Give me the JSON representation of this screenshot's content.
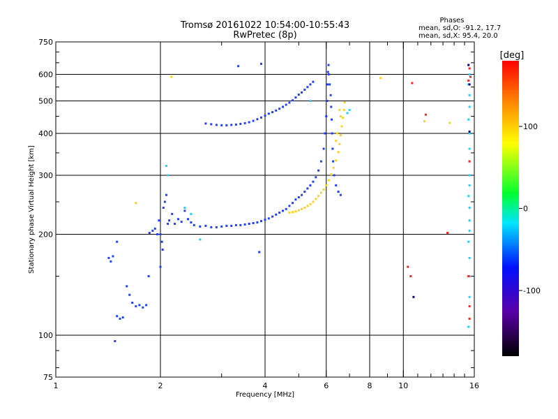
{
  "chart_data": {
    "type": "scatter",
    "title": "Tromsø 20161022 10:54:00-10:55:43",
    "subtitle": "RwPretec (8p)",
    "phases": {
      "heading": "Phases",
      "line_o": "mean, sd,O: -91.2, 17.7",
      "line_x": "mean, sd,X: 95.4, 20.0"
    },
    "xlabel": "Frequency [MHz]",
    "ylabel": "Stationary phase Virtual Height [km]",
    "x_scale": "log",
    "y_scale": "log",
    "xlim": [
      1,
      16
    ],
    "ylim": [
      75,
      750
    ],
    "x_ticks": [
      1,
      2,
      4,
      6,
      8,
      10,
      16
    ],
    "x_tick_labels": [
      "1",
      "2",
      "4",
      "6",
      "8",
      "10",
      "16"
    ],
    "x_minor_ticks": [
      3,
      5,
      7,
      9,
      11,
      12,
      13,
      14,
      15
    ],
    "x_grid": [
      2,
      4,
      6,
      8,
      10
    ],
    "y_ticks": [
      75,
      100,
      200,
      300,
      400,
      500,
      600,
      750
    ],
    "y_tick_labels": [
      "75",
      "100",
      "200",
      "300",
      "400",
      "500",
      "600",
      "750"
    ],
    "y_minor_ticks": [
      80,
      90,
      150,
      250,
      350,
      450,
      550,
      650,
      700
    ],
    "y_grid": [
      100,
      200,
      300,
      400,
      500,
      600
    ],
    "colorbar": {
      "unit": "[deg]",
      "range": [
        -180,
        180
      ],
      "ticks": [
        100,
        0,
        -100
      ],
      "tick_labels": [
        "100",
        "0",
        "-100"
      ]
    },
    "series": [
      {
        "mode": "O",
        "phase_deg": -100,
        "color": "#2040ff",
        "points": [
          [
            1.42,
            170
          ],
          [
            1.44,
            166
          ],
          [
            1.46,
            172
          ],
          [
            1.5,
            114
          ],
          [
            1.53,
            112
          ],
          [
            1.56,
            113
          ],
          [
            1.6,
            140
          ],
          [
            1.63,
            132
          ],
          [
            1.66,
            125
          ],
          [
            1.7,
            122
          ],
          [
            1.74,
            123
          ],
          [
            1.78,
            121
          ],
          [
            1.82,
            123
          ],
          [
            1.85,
            150
          ],
          [
            1.86,
            202
          ],
          [
            1.9,
            205
          ],
          [
            1.93,
            208
          ],
          [
            1.96,
            200
          ],
          [
            1.98,
            220
          ],
          [
            2.0,
            160
          ],
          [
            2.0,
            200
          ],
          [
            2.02,
            190
          ],
          [
            2.03,
            180
          ],
          [
            2.04,
            240
          ],
          [
            2.06,
            250
          ],
          [
            2.08,
            262
          ],
          [
            2.1,
            215
          ],
          [
            2.12,
            220
          ],
          [
            2.16,
            230
          ],
          [
            2.2,
            215
          ],
          [
            2.25,
            222
          ],
          [
            2.3,
            218
          ],
          [
            2.35,
            235
          ],
          [
            2.4,
            222
          ],
          [
            2.45,
            217
          ],
          [
            2.5,
            213
          ],
          [
            2.6,
            211
          ],
          [
            2.7,
            212
          ],
          [
            2.8,
            210
          ],
          [
            2.9,
            210
          ],
          [
            3.0,
            211
          ],
          [
            3.1,
            212
          ],
          [
            3.2,
            212
          ],
          [
            3.3,
            213
          ],
          [
            3.4,
            213
          ],
          [
            3.5,
            214
          ],
          [
            3.6,
            215
          ],
          [
            3.7,
            216
          ],
          [
            3.8,
            217
          ],
          [
            3.9,
            219
          ],
          [
            4.0,
            221
          ],
          [
            4.1,
            223
          ],
          [
            4.2,
            226
          ],
          [
            4.3,
            229
          ],
          [
            4.4,
            232
          ],
          [
            4.5,
            235
          ],
          [
            4.6,
            238
          ],
          [
            4.7,
            243
          ],
          [
            4.8,
            248
          ],
          [
            4.9,
            254
          ],
          [
            5.0,
            258
          ],
          [
            5.1,
            262
          ],
          [
            5.2,
            268
          ],
          [
            5.3,
            274
          ],
          [
            5.4,
            280
          ],
          [
            5.5,
            287
          ],
          [
            5.6,
            296
          ],
          [
            5.7,
            310
          ],
          [
            5.8,
            330
          ],
          [
            5.9,
            360
          ],
          [
            5.95,
            400
          ],
          [
            6.0,
            450
          ],
          [
            6.03,
            500
          ],
          [
            6.05,
            560
          ],
          [
            6.07,
            610
          ],
          [
            6.09,
            640
          ],
          [
            2.7,
            428
          ],
          [
            2.8,
            426
          ],
          [
            2.9,
            424
          ],
          [
            3.0,
            423
          ],
          [
            3.1,
            423
          ],
          [
            3.2,
            424
          ],
          [
            3.3,
            425
          ],
          [
            3.4,
            427
          ],
          [
            3.5,
            429
          ],
          [
            3.6,
            432
          ],
          [
            3.7,
            436
          ],
          [
            3.8,
            441
          ],
          [
            3.9,
            446
          ],
          [
            4.0,
            452
          ],
          [
            4.1,
            458
          ],
          [
            4.2,
            463
          ],
          [
            4.3,
            468
          ],
          [
            4.4,
            474
          ],
          [
            4.5,
            480
          ],
          [
            4.6,
            487
          ],
          [
            4.7,
            494
          ],
          [
            4.8,
            502
          ],
          [
            4.9,
            512
          ],
          [
            5.0,
            522
          ],
          [
            5.1,
            530
          ],
          [
            5.2,
            540
          ],
          [
            5.3,
            550
          ],
          [
            5.4,
            560
          ],
          [
            5.5,
            570
          ],
          [
            6.1,
            600
          ],
          [
            6.14,
            560
          ],
          [
            6.18,
            520
          ],
          [
            6.2,
            480
          ],
          [
            6.22,
            440
          ],
          [
            6.24,
            400
          ],
          [
            6.26,
            360
          ],
          [
            6.28,
            330
          ],
          [
            6.32,
            300
          ],
          [
            6.4,
            280
          ],
          [
            6.5,
            268
          ],
          [
            6.6,
            262
          ],
          [
            3.35,
            635
          ],
          [
            3.9,
            645
          ],
          [
            3.85,
            177
          ],
          [
            1.5,
            190
          ],
          [
            1.48,
            96
          ]
        ]
      },
      {
        "mode": "X",
        "phase_deg": 100,
        "color": "#ffd21a",
        "points": [
          [
            4.7,
            232
          ],
          [
            4.8,
            233
          ],
          [
            4.9,
            234
          ],
          [
            5.0,
            236
          ],
          [
            5.1,
            238
          ],
          [
            5.2,
            240
          ],
          [
            5.3,
            243
          ],
          [
            5.4,
            246
          ],
          [
            5.5,
            250
          ],
          [
            5.6,
            255
          ],
          [
            5.7,
            260
          ],
          [
            5.8,
            266
          ],
          [
            5.9,
            272
          ],
          [
            6.0,
            280
          ],
          [
            6.1,
            290
          ],
          [
            6.2,
            302
          ],
          [
            6.3,
            316
          ],
          [
            6.4,
            332
          ],
          [
            6.5,
            352
          ],
          [
            6.55,
            372
          ],
          [
            6.6,
            395
          ],
          [
            6.65,
            420
          ],
          [
            6.7,
            445
          ],
          [
            6.75,
            470
          ],
          [
            6.78,
            495
          ],
          [
            6.55,
            470
          ],
          [
            6.6,
            450
          ],
          [
            6.45,
            400
          ],
          [
            6.4,
            380
          ],
          [
            8.6,
            585
          ],
          [
            11.5,
            435
          ],
          [
            13.6,
            430
          ],
          [
            1.7,
            248
          ],
          [
            2.15,
            590
          ]
        ]
      },
      {
        "mode": "scattered",
        "phase_deg": 0,
        "color": "#20d0ff",
        "points": [
          [
            2.1,
            300
          ],
          [
            2.08,
            320
          ],
          [
            2.35,
            240
          ],
          [
            2.45,
            230
          ],
          [
            5.4,
            500
          ],
          [
            6.9,
            460
          ],
          [
            7.0,
            470
          ],
          [
            15.5,
            600
          ],
          [
            15.4,
            560
          ],
          [
            15.5,
            520
          ],
          [
            15.5,
            480
          ],
          [
            15.4,
            440
          ],
          [
            15.5,
            400
          ],
          [
            15.5,
            360
          ],
          [
            15.5,
            330
          ],
          [
            15.5,
            300
          ],
          [
            15.5,
            280
          ],
          [
            15.4,
            260
          ],
          [
            15.5,
            240
          ],
          [
            15.5,
            220
          ],
          [
            15.5,
            205
          ],
          [
            15.4,
            190
          ],
          [
            15.5,
            170
          ],
          [
            15.5,
            150
          ],
          [
            15.5,
            130
          ],
          [
            15.4,
            106
          ],
          [
            2.6,
            193
          ]
        ]
      },
      {
        "mode": "scattered",
        "phase_deg": 160,
        "color": "#ff2020",
        "points": [
          [
            10.6,
            565
          ],
          [
            11.6,
            455
          ],
          [
            13.4,
            202
          ],
          [
            10.3,
            160
          ],
          [
            10.5,
            150
          ],
          [
            15.5,
            625
          ],
          [
            15.6,
            590
          ],
          [
            15.4,
            575
          ],
          [
            15.5,
            330
          ],
          [
            15.4,
            150
          ],
          [
            15.5,
            122
          ],
          [
            15.5,
            112
          ]
        ]
      },
      {
        "mode": "scattered",
        "phase_deg": -140,
        "color": "#000080",
        "points": [
          [
            10.7,
            130
          ],
          [
            15.5,
            405
          ],
          [
            15.5,
            560
          ],
          [
            15.4,
            640
          ]
        ]
      }
    ]
  }
}
